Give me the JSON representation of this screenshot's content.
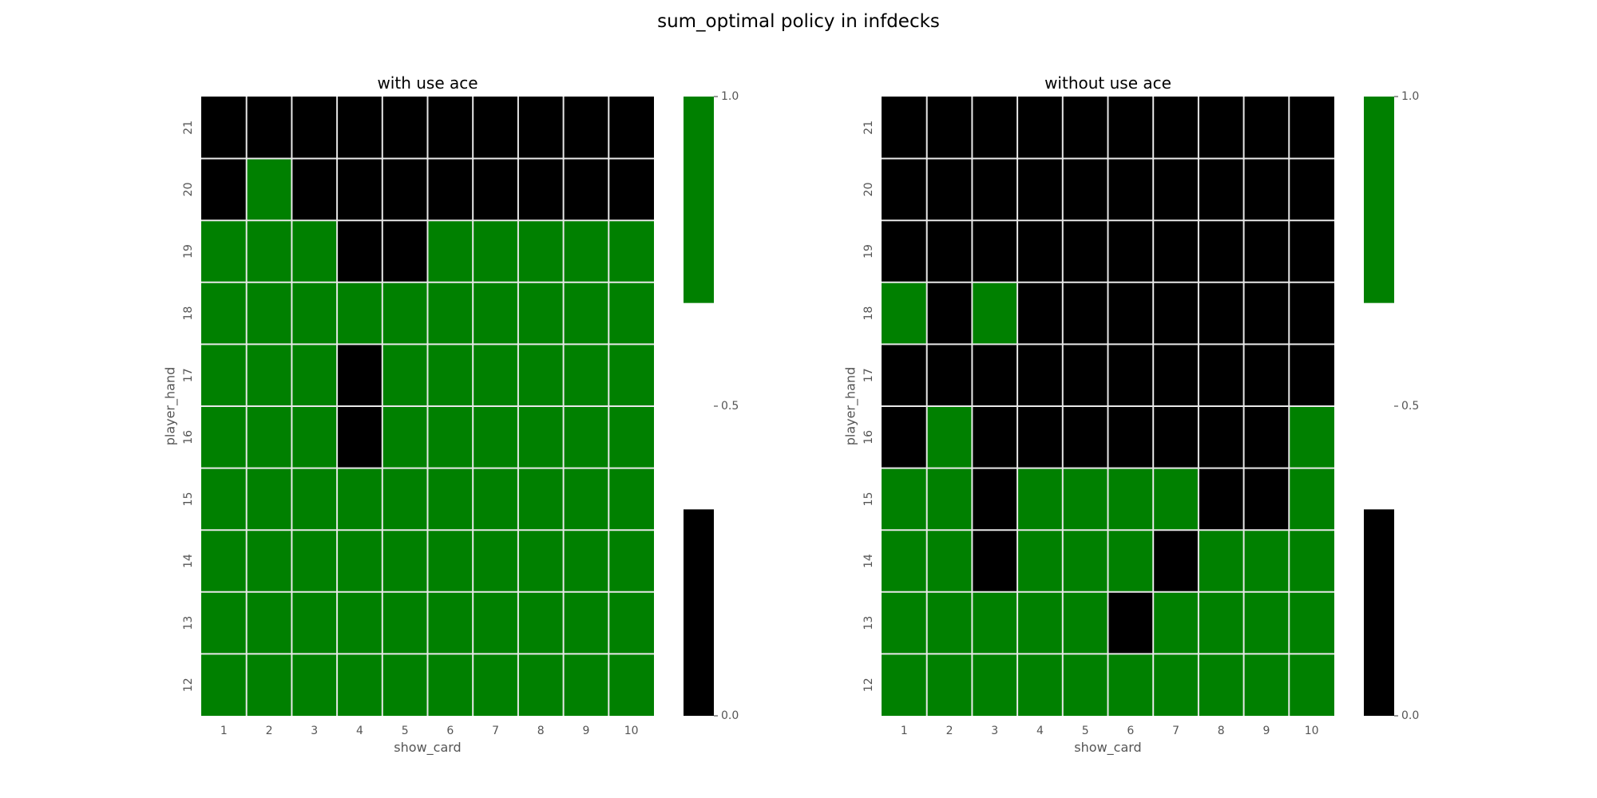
{
  "suptitle": "sum_optimal policy in infdecks",
  "colors": {
    "stick": "#000000",
    "hit": "#008000",
    "grid": "#e8e8e8",
    "tick_text": "#555555"
  },
  "chart_data": [
    {
      "type": "heatmap",
      "title": "with use ace",
      "xlabel": "show_card",
      "ylabel": "player_hand",
      "x": [
        1,
        2,
        3,
        4,
        5,
        6,
        7,
        8,
        9,
        10
      ],
      "y": [
        21,
        20,
        19,
        18,
        17,
        16,
        15,
        14,
        13,
        12
      ],
      "values": [
        [
          0,
          0,
          0,
          0,
          0,
          0,
          0,
          0,
          0,
          0
        ],
        [
          0,
          1,
          0,
          0,
          0,
          0,
          0,
          0,
          0,
          0
        ],
        [
          1,
          1,
          1,
          0,
          0,
          1,
          1,
          1,
          1,
          1
        ],
        [
          1,
          1,
          1,
          1,
          1,
          1,
          1,
          1,
          1,
          1
        ],
        [
          1,
          1,
          1,
          0,
          1,
          1,
          1,
          1,
          1,
          1
        ],
        [
          1,
          1,
          1,
          0,
          1,
          1,
          1,
          1,
          1,
          1
        ],
        [
          1,
          1,
          1,
          1,
          1,
          1,
          1,
          1,
          1,
          1
        ],
        [
          1,
          1,
          1,
          1,
          1,
          1,
          1,
          1,
          1,
          1
        ],
        [
          1,
          1,
          1,
          1,
          1,
          1,
          1,
          1,
          1,
          1
        ],
        [
          1,
          1,
          1,
          1,
          1,
          1,
          1,
          1,
          1,
          1
        ]
      ],
      "colorbar": {
        "ticks": [
          0.0,
          0.5,
          1.0
        ],
        "tick_labels": [
          "0.0",
          "0.5",
          "1.0"
        ],
        "range": [
          0,
          1
        ]
      }
    },
    {
      "type": "heatmap",
      "title": "without use ace",
      "xlabel": "show_card",
      "ylabel": "player_hand",
      "x": [
        1,
        2,
        3,
        4,
        5,
        6,
        7,
        8,
        9,
        10
      ],
      "y": [
        21,
        20,
        19,
        18,
        17,
        16,
        15,
        14,
        13,
        12
      ],
      "values": [
        [
          0,
          0,
          0,
          0,
          0,
          0,
          0,
          0,
          0,
          0
        ],
        [
          0,
          0,
          0,
          0,
          0,
          0,
          0,
          0,
          0,
          0
        ],
        [
          0,
          0,
          0,
          0,
          0,
          0,
          0,
          0,
          0,
          0
        ],
        [
          1,
          0,
          1,
          0,
          0,
          0,
          0,
          0,
          0,
          0
        ],
        [
          0,
          0,
          0,
          0,
          0,
          0,
          0,
          0,
          0,
          0
        ],
        [
          0,
          1,
          0,
          0,
          0,
          0,
          0,
          0,
          0,
          1
        ],
        [
          1,
          1,
          0,
          1,
          1,
          1,
          1,
          0,
          0,
          1
        ],
        [
          1,
          1,
          0,
          1,
          1,
          1,
          0,
          1,
          1,
          1
        ],
        [
          1,
          1,
          1,
          1,
          1,
          0,
          1,
          1,
          1,
          1
        ],
        [
          1,
          1,
          1,
          1,
          1,
          1,
          1,
          1,
          1,
          1
        ]
      ],
      "colorbar": {
        "ticks": [
          0.0,
          0.5,
          1.0
        ],
        "tick_labels": [
          "0.0",
          "0.5",
          "1.0"
        ],
        "range": [
          0,
          1
        ]
      }
    }
  ]
}
